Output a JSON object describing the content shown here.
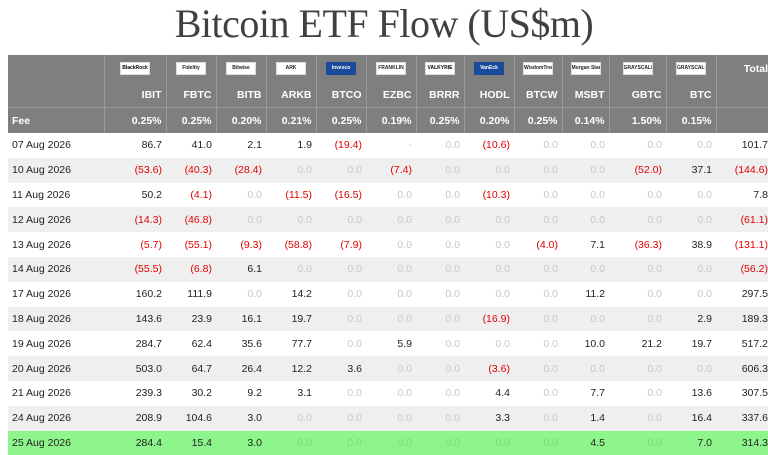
{
  "title": "Bitcoin ETF Flow (US$m)",
  "logos": [
    {
      "name": "blackrock-logo",
      "text": "BlackRock",
      "style": "dark"
    },
    {
      "name": "fidelity-logo",
      "text": "Fidelity",
      "style": "plain"
    },
    {
      "name": "bitwise-logo",
      "text": "Bitwise",
      "style": "plain"
    },
    {
      "name": "ark-logo",
      "text": "ARK",
      "style": "plain"
    },
    {
      "name": "invesco-logo",
      "text": "Invesco",
      "style": "blue"
    },
    {
      "name": "franklin-logo",
      "text": "FRANKLIN",
      "style": "plain"
    },
    {
      "name": "valkyrie-logo",
      "text": "VALKYRIE",
      "style": "dark"
    },
    {
      "name": "vaneck-logo",
      "text": "VanEck",
      "style": "blue"
    },
    {
      "name": "wisdomtree-logo",
      "text": "WisdomTree",
      "style": "plain"
    },
    {
      "name": "morgan-stanley-logo",
      "text": "Morgan Stanley",
      "style": "plain"
    },
    {
      "name": "grayscale-logo",
      "text": "GRAYSCALE",
      "style": "plain"
    },
    {
      "name": "grayscale-mini-logo",
      "text": "GRAYSCALE",
      "style": "plain"
    }
  ],
  "headers": {
    "total": "Total",
    "fee_label": "Fee",
    "tickers": [
      "IBIT",
      "FBTC",
      "BITB",
      "ARKB",
      "BTCO",
      "EZBC",
      "BRRR",
      "HODL",
      "BTCW",
      "MSBT",
      "GBTC",
      "BTC"
    ],
    "fees": [
      "0.25%",
      "0.25%",
      "0.20%",
      "0.21%",
      "0.25%",
      "0.19%",
      "0.25%",
      "0.20%",
      "0.25%",
      "0.14%",
      "1.50%",
      "0.15%"
    ]
  },
  "rows": [
    {
      "date": "07 Aug 2026",
      "values": [
        "86.7",
        "41.0",
        "2.1",
        "1.9",
        "(19.4)",
        "-",
        "0.0",
        "(10.6)",
        "0.0",
        "0.0",
        "0.0",
        "0.0"
      ],
      "total": "101.7"
    },
    {
      "date": "10 Aug 2026",
      "values": [
        "(53.6)",
        "(40.3)",
        "(28.4)",
        "0.0",
        "0.0",
        "(7.4)",
        "0.0",
        "0.0",
        "0.0",
        "0.0",
        "(52.0)",
        "37.1"
      ],
      "total": "(144.6)"
    },
    {
      "date": "11 Aug 2026",
      "values": [
        "50.2",
        "(4.1)",
        "0.0",
        "(11.5)",
        "(16.5)",
        "0.0",
        "0.0",
        "(10.3)",
        "0.0",
        "0.0",
        "0.0",
        "0.0"
      ],
      "total": "7.8"
    },
    {
      "date": "12 Aug 2026",
      "values": [
        "(14.3)",
        "(46.8)",
        "0.0",
        "0.0",
        "0.0",
        "0.0",
        "0.0",
        "0.0",
        "0.0",
        "0.0",
        "0.0",
        "0.0"
      ],
      "total": "(61.1)"
    },
    {
      "date": "13 Aug 2026",
      "values": [
        "(5.7)",
        "(55.1)",
        "(9.3)",
        "(58.8)",
        "(7.9)",
        "0.0",
        "0.0",
        "0.0",
        "(4.0)",
        "7.1",
        "(36.3)",
        "38.9"
      ],
      "total": "(131.1)"
    },
    {
      "date": "14 Aug 2026",
      "values": [
        "(55.5)",
        "(6.8)",
        "6.1",
        "0.0",
        "0.0",
        "0.0",
        "0.0",
        "0.0",
        "0.0",
        "0.0",
        "0.0",
        "0.0"
      ],
      "total": "(56.2)"
    },
    {
      "date": "17 Aug 2026",
      "values": [
        "160.2",
        "111.9",
        "0.0",
        "14.2",
        "0.0",
        "0.0",
        "0.0",
        "0.0",
        "0.0",
        "11.2",
        "0.0",
        "0.0"
      ],
      "total": "297.5"
    },
    {
      "date": "18 Aug 2026",
      "values": [
        "143.6",
        "23.9",
        "16.1",
        "19.7",
        "0.0",
        "0.0",
        "0.0",
        "(16.9)",
        "0.0",
        "0.0",
        "0.0",
        "2.9"
      ],
      "total": "189.3"
    },
    {
      "date": "19 Aug 2026",
      "values": [
        "284.7",
        "62.4",
        "35.6",
        "77.7",
        "0.0",
        "5.9",
        "0.0",
        "0.0",
        "0.0",
        "10.0",
        "21.2",
        "19.7"
      ],
      "total": "517.2"
    },
    {
      "date": "20 Aug 2026",
      "values": [
        "503.0",
        "64.7",
        "26.4",
        "12.2",
        "3.6",
        "0.0",
        "0.0",
        "(3.6)",
        "0.0",
        "0.0",
        "0.0",
        "0.0"
      ],
      "total": "606.3"
    },
    {
      "date": "21 Aug 2026",
      "values": [
        "239.3",
        "30.2",
        "9.2",
        "3.1",
        "0.0",
        "0.0",
        "0.0",
        "4.4",
        "0.0",
        "7.7",
        "0.0",
        "13.6"
      ],
      "total": "307.5"
    },
    {
      "date": "24 Aug 2026",
      "values": [
        "208.9",
        "104.6",
        "3.0",
        "0.0",
        "0.0",
        "0.0",
        "0.0",
        "3.3",
        "0.0",
        "1.4",
        "0.0",
        "16.4"
      ],
      "total": "337.6"
    },
    {
      "date": "25 Aug 2026",
      "values": [
        "284.4",
        "15.4",
        "3.0",
        "0.0",
        "0.0",
        "0.0",
        "0.0",
        "0.0",
        "0.0",
        "4.5",
        "0.0",
        "7.0"
      ],
      "total": "314.3",
      "highlight": true
    }
  ],
  "colors": {
    "header_bg": "#7f7f7f",
    "negative": "#e00000",
    "zero": "#c8c8c8",
    "highlight": "#8ef58c",
    "stripe": "#efefef"
  }
}
